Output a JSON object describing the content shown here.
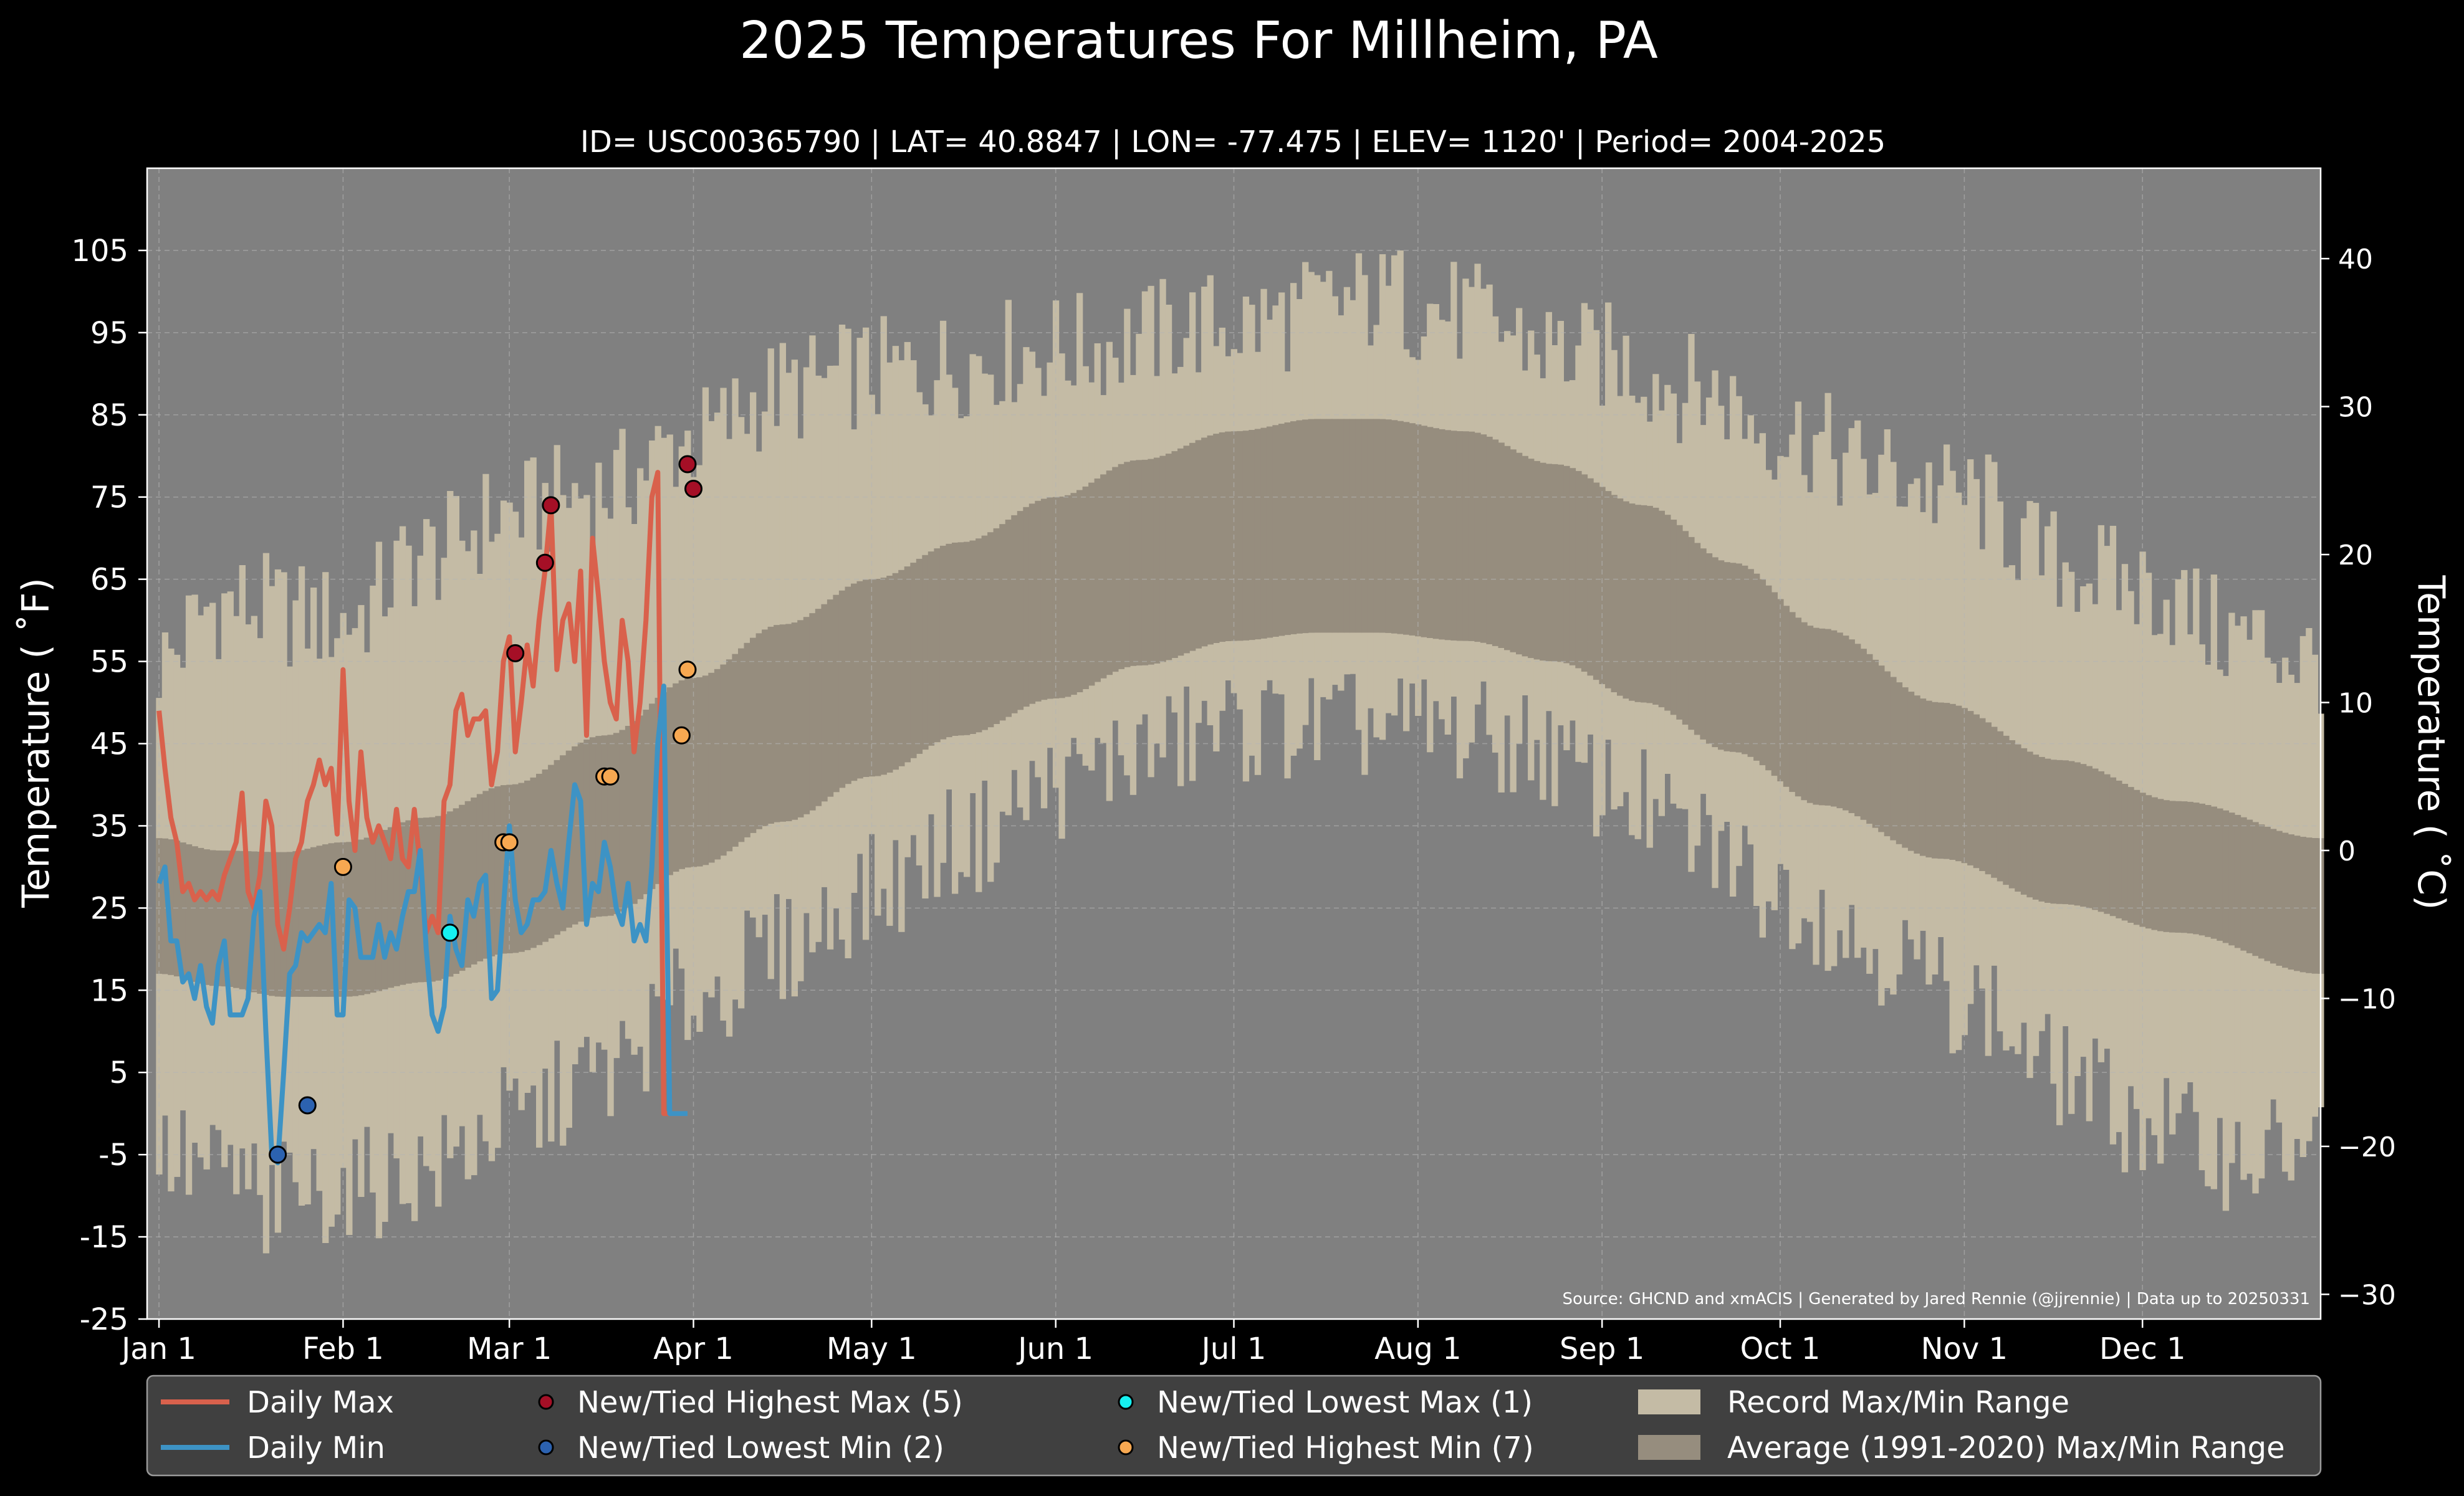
{
  "chart_data": {
    "type": "line",
    "title": "2025 Temperatures For Millheim, PA",
    "subtitle": "ID= USC00365790 | LAT= 40.8847 | LON= -77.475 | ELEV= 1120' | Period= 2004-2025",
    "ylabel_left": "Temperature ( ˚F)",
    "ylabel_right": "Temperature ( ˚C)",
    "source": "Source: GHCND and xmACIS | Generated by Jared Rennie (@jjrennie) | Data up to 20250331",
    "ylim_f": [
      -25,
      115
    ],
    "ylim_c": [
      -31.67,
      46.11
    ],
    "yticks_f": [
      105,
      95,
      85,
      75,
      65,
      55,
      45,
      35,
      25,
      15,
      5,
      -5,
      -15,
      -25
    ],
    "yticks_f_labels": [
      "105",
      "95",
      "85",
      "75",
      "65",
      "55",
      "45",
      "35",
      "25",
      "15",
      "5",
      "-5",
      "-15",
      "-25"
    ],
    "yticks_c": [
      40,
      30,
      20,
      10,
      0,
      -10,
      -20,
      -30
    ],
    "yticks_c_labels": [
      "40",
      "30",
      "20",
      "10",
      "0",
      "−10",
      "−20",
      "−30"
    ],
    "xlim_days": [
      -2,
      364
    ],
    "month_ticks": [
      {
        "day": 0,
        "label": "Jan 1"
      },
      {
        "day": 31,
        "label": "Feb 1"
      },
      {
        "day": 59,
        "label": "Mar 1"
      },
      {
        "day": 90,
        "label": "Apr 1"
      },
      {
        "day": 120,
        "label": "May 1"
      },
      {
        "day": 151,
        "label": "Jun 1"
      },
      {
        "day": 181,
        "label": "Jul 1"
      },
      {
        "day": 212,
        "label": "Aug 1"
      },
      {
        "day": 243,
        "label": "Sep 1"
      },
      {
        "day": 273,
        "label": "Oct 1"
      },
      {
        "day": 304,
        "label": "Nov 1"
      },
      {
        "day": 334,
        "label": "Dec 1"
      }
    ],
    "grid": true,
    "legend_position": "bottom",
    "colors": {
      "background": "#000000",
      "plot_background": "#808080",
      "record_band": "#c4bba5",
      "normal_band": "#968d7e",
      "daily_max": "#d9614c",
      "daily_min": "#3d93c5",
      "highest_max_marker": "#a50f26",
      "lowest_min_marker": "#2c62b0",
      "lowest_max_marker": "#16f0f0",
      "highest_min_marker": "#f7a851",
      "grid": "#b5b5b5",
      "legend_bg": "#404040"
    },
    "record_max_anchors": [
      [
        0,
        55
      ],
      [
        10,
        62
      ],
      [
        31,
        60
      ],
      [
        45,
        68
      ],
      [
        59,
        73
      ],
      [
        75,
        76
      ],
      [
        90,
        82
      ],
      [
        105,
        88
      ],
      [
        120,
        90
      ],
      [
        151,
        93
      ],
      [
        181,
        96
      ],
      [
        205,
        99
      ],
      [
        212,
        98
      ],
      [
        243,
        92
      ],
      [
        260,
        88
      ],
      [
        273,
        83
      ],
      [
        290,
        78
      ],
      [
        304,
        75
      ],
      [
        320,
        67
      ],
      [
        334,
        64
      ],
      [
        350,
        58
      ],
      [
        364,
        55
      ]
    ],
    "record_min_anchors": [
      [
        0,
        -5
      ],
      [
        10,
        -7
      ],
      [
        20,
        -10
      ],
      [
        31,
        -9
      ],
      [
        45,
        -7
      ],
      [
        59,
        -1
      ],
      [
        75,
        5
      ],
      [
        90,
        14
      ],
      [
        105,
        20
      ],
      [
        120,
        27
      ],
      [
        135,
        33
      ],
      [
        151,
        40
      ],
      [
        165,
        44
      ],
      [
        181,
        47
      ],
      [
        212,
        47
      ],
      [
        230,
        45
      ],
      [
        243,
        40
      ],
      [
        260,
        33
      ],
      [
        273,
        27
      ],
      [
        290,
        20
      ],
      [
        304,
        14
      ],
      [
        320,
        5
      ],
      [
        334,
        -1
      ],
      [
        350,
        -5
      ],
      [
        364,
        -4
      ]
    ],
    "normal_max_anchors": [
      [
        0,
        33.5
      ],
      [
        10,
        32
      ],
      [
        21,
        31.8
      ],
      [
        31,
        33
      ],
      [
        45,
        36
      ],
      [
        59,
        40
      ],
      [
        75,
        46
      ],
      [
        90,
        53
      ],
      [
        105,
        59.5
      ],
      [
        120,
        65
      ],
      [
        135,
        69.5
      ],
      [
        151,
        75
      ],
      [
        165,
        79.5
      ],
      [
        181,
        83
      ],
      [
        195,
        84.5
      ],
      [
        205,
        84.5
      ],
      [
        220,
        83
      ],
      [
        235,
        79
      ],
      [
        250,
        74
      ],
      [
        265,
        67
      ],
      [
        280,
        59
      ],
      [
        300,
        50
      ],
      [
        320,
        43
      ],
      [
        340,
        38
      ],
      [
        364,
        33.5
      ]
    ],
    "normal_min_anchors": [
      [
        0,
        17
      ],
      [
        10,
        15.5
      ],
      [
        21,
        14.2
      ],
      [
        31,
        14.2
      ],
      [
        45,
        16
      ],
      [
        59,
        19.5
      ],
      [
        75,
        24
      ],
      [
        90,
        30
      ],
      [
        105,
        35.5
      ],
      [
        120,
        41
      ],
      [
        135,
        46
      ],
      [
        151,
        50.5
      ],
      [
        165,
        54.5
      ],
      [
        181,
        57.5
      ],
      [
        195,
        58.5
      ],
      [
        205,
        58.5
      ],
      [
        220,
        57.5
      ],
      [
        235,
        55
      ],
      [
        250,
        50
      ],
      [
        265,
        44
      ],
      [
        280,
        37.5
      ],
      [
        300,
        31
      ],
      [
        320,
        25.5
      ],
      [
        340,
        22
      ],
      [
        364,
        17
      ]
    ],
    "series": [
      {
        "name": "Daily Max",
        "x": [
          0,
          1,
          2,
          3,
          4,
          5,
          6,
          7,
          8,
          9,
          10,
          11,
          12,
          13,
          14,
          15,
          16,
          17,
          18,
          19,
          20,
          21,
          22,
          23,
          24,
          25,
          26,
          27,
          28,
          29,
          30,
          31,
          32,
          33,
          34,
          35,
          36,
          37,
          38,
          39,
          40,
          41,
          42,
          43,
          44,
          45,
          46,
          47,
          48,
          49,
          50,
          51,
          52,
          53,
          54,
          55,
          56,
          57,
          58,
          59,
          60,
          61,
          62,
          63,
          64,
          65,
          66,
          67,
          68,
          69,
          70,
          71,
          72,
          73,
          74,
          75,
          76,
          77,
          78,
          79,
          80,
          81,
          82,
          83,
          84,
          85,
          86,
          87,
          88,
          89
        ],
        "values": [
          49,
          42,
          36,
          33,
          27,
          28,
          26,
          27,
          26,
          27,
          26,
          29,
          31,
          33,
          39,
          27,
          25,
          29,
          38,
          35,
          23,
          20,
          25,
          31,
          33,
          38,
          40,
          43,
          40,
          42,
          34,
          54,
          38,
          32,
          44,
          36,
          33,
          35,
          33,
          31,
          37,
          31,
          30,
          37,
          30,
          22,
          24,
          22,
          38,
          40,
          49,
          51,
          46,
          48,
          48,
          49,
          40,
          44,
          55,
          58,
          44,
          50,
          57,
          52,
          60,
          66,
          74,
          54,
          60,
          62,
          55,
          66,
          46,
          70,
          63,
          55,
          50,
          48,
          60,
          55,
          44,
          50,
          60,
          75,
          78,
          0,
          0,
          0,
          0,
          0
        ]
      },
      {
        "name": "Daily Min",
        "x": [
          0,
          1,
          2,
          3,
          4,
          5,
          6,
          7,
          8,
          9,
          10,
          11,
          12,
          13,
          14,
          15,
          16,
          17,
          18,
          19,
          20,
          21,
          22,
          23,
          24,
          25,
          26,
          27,
          28,
          29,
          30,
          31,
          32,
          33,
          34,
          35,
          36,
          37,
          38,
          39,
          40,
          41,
          42,
          43,
          44,
          45,
          46,
          47,
          48,
          49,
          50,
          51,
          52,
          53,
          54,
          55,
          56,
          57,
          58,
          59,
          60,
          61,
          62,
          63,
          64,
          65,
          66,
          67,
          68,
          69,
          70,
          71,
          72,
          73,
          74,
          75,
          76,
          77,
          78,
          79,
          80,
          81,
          82,
          83,
          84,
          85,
          86,
          87,
          88,
          89
        ],
        "values": [
          28,
          30,
          21,
          21,
          16,
          17,
          14,
          18,
          13,
          11,
          18,
          21,
          12,
          12,
          12,
          14,
          24,
          27,
          10,
          -5,
          -6,
          5,
          17,
          18,
          22,
          21,
          22,
          23,
          22,
          28,
          12,
          12,
          26,
          25,
          19,
          19,
          19,
          23,
          19,
          22,
          20,
          24,
          27,
          27,
          32,
          20,
          12,
          10,
          13,
          24,
          20,
          18,
          26,
          24,
          28,
          29,
          14,
          15,
          25,
          35,
          26,
          22,
          23,
          26,
          26,
          27,
          32,
          28,
          25,
          33,
          40,
          38,
          23,
          28,
          27,
          33,
          30,
          25,
          23,
          28,
          21,
          23,
          21,
          30,
          45,
          52,
          0,
          0,
          0,
          0
        ]
      }
    ],
    "record_markers": {
      "new_tied_highest_max": {
        "label": "New/Tied Highest Max (5)",
        "points": [
          [
            65,
            67
          ],
          [
            66,
            74
          ],
          [
            60,
            56
          ],
          [
            89,
            79
          ],
          [
            90,
            76
          ]
        ]
      },
      "new_tied_lowest_min": {
        "label": "New/Tied Lowest Min (2)",
        "points": [
          [
            20,
            -5
          ],
          [
            25,
            1
          ]
        ]
      },
      "new_tied_lowest_max": {
        "label": "New/Tied Lowest Max (1)",
        "points": [
          [
            49,
            22
          ]
        ]
      },
      "new_tied_highest_min": {
        "label": "New/Tied Highest Min (7)",
        "points": [
          [
            31,
            30
          ],
          [
            58,
            33
          ],
          [
            59,
            33
          ],
          [
            75,
            41
          ],
          [
            76,
            41
          ],
          [
            89,
            54
          ],
          [
            88,
            46
          ]
        ]
      }
    },
    "legend": [
      {
        "key": "daily_max",
        "label": "Daily Max",
        "kind": "line"
      },
      {
        "key": "daily_min",
        "label": "Daily Min",
        "kind": "line"
      },
      {
        "key": "highest_max_marker",
        "label": "New/Tied Highest Max (5)",
        "kind": "marker"
      },
      {
        "key": "lowest_min_marker",
        "label": "New/Tied Lowest Min (2)",
        "kind": "marker"
      },
      {
        "key": "lowest_max_marker",
        "label": "New/Tied Lowest Max (1)",
        "kind": "marker"
      },
      {
        "key": "highest_min_marker",
        "label": "New/Tied Highest Min (7)",
        "kind": "marker"
      },
      {
        "key": "record_band",
        "label": "Record Max/Min Range",
        "kind": "patch"
      },
      {
        "key": "normal_band",
        "label": "Average (1991-2020) Max/Min Range",
        "kind": "patch"
      }
    ]
  }
}
